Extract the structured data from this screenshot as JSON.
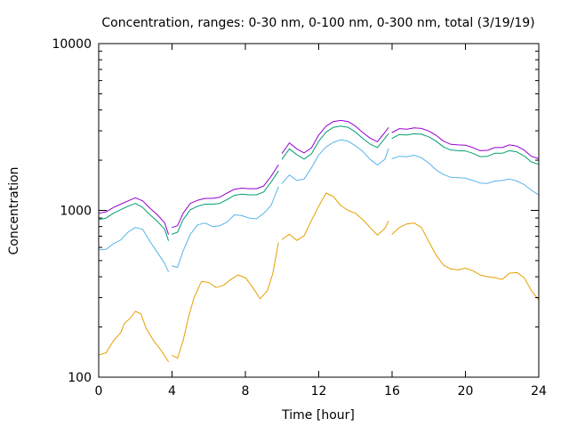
{
  "chart_data": {
    "type": "line",
    "title": "Concentration, ranges: 0-30 nm, 0-100 nm, 0-300 nm, total (3/19/19)",
    "xlabel": "Time [hour]",
    "ylabel": "Concentration",
    "xlim": [
      0,
      24
    ],
    "ylim": [
      100,
      10000
    ],
    "yscale": "log",
    "grid": false,
    "legend": "none",
    "x_ticks": [
      {
        "value": 0,
        "label": "0"
      },
      {
        "value": 4,
        "label": "4"
      },
      {
        "value": 8,
        "label": "8"
      },
      {
        "value": 12,
        "label": "12"
      },
      {
        "value": 16,
        "label": "16"
      },
      {
        "value": 20,
        "label": "20"
      },
      {
        "value": 24,
        "label": "24"
      }
    ],
    "y_ticks": [
      {
        "value": 100,
        "label": "100"
      },
      {
        "value": 1000,
        "label": "1000"
      },
      {
        "value": 10000,
        "label": "10000"
      }
    ],
    "series": [
      {
        "color": "#e69f00",
        "segments": [
          [
            [
              0,
              136
            ],
            [
              0.4,
              140
            ],
            [
              0.8,
              165
            ],
            [
              1.2,
              185
            ],
            [
              1.4,
              210
            ],
            [
              1.7,
              225
            ],
            [
              2.0,
              248
            ],
            [
              2.3,
              240
            ],
            [
              2.6,
              195
            ],
            [
              3.0,
              165
            ],
            [
              3.4,
              145
            ],
            [
              3.8,
              124
            ]
          ],
          [
            [
              4.0,
              135
            ],
            [
              4.3,
              130
            ],
            [
              4.6,
              165
            ],
            [
              4.9,
              230
            ],
            [
              5.2,
              300
            ],
            [
              5.6,
              375
            ],
            [
              6.0,
              370
            ],
            [
              6.4,
              345
            ],
            [
              6.8,
              355
            ],
            [
              7.2,
              385
            ],
            [
              7.6,
              410
            ],
            [
              8.0,
              395
            ],
            [
              8.4,
              345
            ],
            [
              8.8,
              295
            ],
            [
              9.2,
              330
            ],
            [
              9.5,
              420
            ],
            [
              9.8,
              640
            ]
          ],
          [
            [
              10.0,
              670
            ],
            [
              10.4,
              720
            ],
            [
              10.8,
              660
            ],
            [
              11.2,
              705
            ],
            [
              11.6,
              870
            ],
            [
              12.0,
              1060
            ],
            [
              12.4,
              1270
            ],
            [
              12.8,
              1210
            ],
            [
              13.2,
              1070
            ],
            [
              13.6,
              1000
            ],
            [
              14.0,
              960
            ],
            [
              14.4,
              880
            ],
            [
              14.8,
              790
            ],
            [
              15.2,
              710
            ],
            [
              15.6,
              780
            ],
            [
              15.8,
              860
            ]
          ],
          [
            [
              16.0,
              720
            ],
            [
              16.4,
              790
            ],
            [
              16.8,
              830
            ],
            [
              17.2,
              840
            ],
            [
              17.6,
              790
            ],
            [
              18.0,
              650
            ],
            [
              18.4,
              540
            ],
            [
              18.8,
              470
            ],
            [
              19.2,
              445
            ],
            [
              19.6,
              440
            ],
            [
              20.0,
              450
            ],
            [
              20.4,
              435
            ],
            [
              20.8,
              410
            ],
            [
              21.2,
              400
            ],
            [
              21.6,
              395
            ],
            [
              22.0,
              385
            ],
            [
              22.4,
              420
            ],
            [
              22.8,
              425
            ],
            [
              23.2,
              395
            ],
            [
              23.6,
              330
            ],
            [
              24.0,
              290
            ]
          ]
        ]
      },
      {
        "color": "#56b4e9",
        "segments": [
          [
            [
              0,
              580
            ],
            [
              0.4,
              585
            ],
            [
              0.8,
              630
            ],
            [
              1.2,
              665
            ],
            [
              1.6,
              740
            ],
            [
              2.0,
              790
            ],
            [
              2.4,
              770
            ],
            [
              2.8,
              650
            ],
            [
              3.2,
              560
            ],
            [
              3.6,
              480
            ],
            [
              3.8,
              430
            ]
          ],
          [
            [
              4.0,
              465
            ],
            [
              4.3,
              455
            ],
            [
              4.6,
              570
            ],
            [
              5.0,
              720
            ],
            [
              5.4,
              820
            ],
            [
              5.8,
              840
            ],
            [
              6.2,
              800
            ],
            [
              6.6,
              810
            ],
            [
              7.0,
              850
            ],
            [
              7.4,
              940
            ],
            [
              7.8,
              930
            ],
            [
              8.2,
              900
            ],
            [
              8.6,
              890
            ],
            [
              9.0,
              960
            ],
            [
              9.4,
              1070
            ],
            [
              9.8,
              1380
            ]
          ],
          [
            [
              10.0,
              1450
            ],
            [
              10.4,
              1630
            ],
            [
              10.8,
              1510
            ],
            [
              11.2,
              1540
            ],
            [
              11.6,
              1800
            ],
            [
              12.0,
              2150
            ],
            [
              12.4,
              2400
            ],
            [
              12.8,
              2560
            ],
            [
              13.2,
              2650
            ],
            [
              13.6,
              2600
            ],
            [
              14.0,
              2440
            ],
            [
              14.4,
              2260
            ],
            [
              14.8,
              2020
            ],
            [
              15.2,
              1870
            ],
            [
              15.6,
              2020
            ],
            [
              15.8,
              2340
            ]
          ],
          [
            [
              16.0,
              2040
            ],
            [
              16.4,
              2110
            ],
            [
              16.8,
              2100
            ],
            [
              17.2,
              2140
            ],
            [
              17.6,
              2070
            ],
            [
              18.0,
              1920
            ],
            [
              18.4,
              1750
            ],
            [
              18.8,
              1640
            ],
            [
              19.2,
              1580
            ],
            [
              19.6,
              1570
            ],
            [
              20.0,
              1560
            ],
            [
              20.4,
              1510
            ],
            [
              20.8,
              1460
            ],
            [
              21.2,
              1450
            ],
            [
              21.6,
              1500
            ],
            [
              22.0,
              1510
            ],
            [
              22.4,
              1540
            ],
            [
              22.8,
              1500
            ],
            [
              23.2,
              1430
            ],
            [
              23.6,
              1320
            ],
            [
              24.0,
              1240
            ]
          ]
        ]
      },
      {
        "color": "#009e73",
        "segments": [
          [
            [
              0,
              880
            ],
            [
              0.4,
              900
            ],
            [
              0.8,
              960
            ],
            [
              1.2,
              1010
            ],
            [
              1.6,
              1060
            ],
            [
              2.0,
              1100
            ],
            [
              2.4,
              1040
            ],
            [
              2.8,
              940
            ],
            [
              3.2,
              860
            ],
            [
              3.6,
              770
            ],
            [
              3.8,
              660
            ]
          ],
          [
            [
              4.0,
              720
            ],
            [
              4.3,
              740
            ],
            [
              4.6,
              880
            ],
            [
              5.0,
              1010
            ],
            [
              5.4,
              1060
            ],
            [
              5.8,
              1090
            ],
            [
              6.2,
              1090
            ],
            [
              6.6,
              1100
            ],
            [
              7.0,
              1160
            ],
            [
              7.4,
              1230
            ],
            [
              7.8,
              1250
            ],
            [
              8.2,
              1240
            ],
            [
              8.6,
              1240
            ],
            [
              9.0,
              1290
            ],
            [
              9.4,
              1480
            ],
            [
              9.8,
              1720
            ]
          ],
          [
            [
              10.0,
              2030
            ],
            [
              10.4,
              2340
            ],
            [
              10.8,
              2160
            ],
            [
              11.2,
              2030
            ],
            [
              11.6,
              2180
            ],
            [
              12.0,
              2600
            ],
            [
              12.4,
              2950
            ],
            [
              12.8,
              3150
            ],
            [
              13.2,
              3200
            ],
            [
              13.6,
              3150
            ],
            [
              14.0,
              2950
            ],
            [
              14.4,
              2700
            ],
            [
              14.8,
              2500
            ],
            [
              15.2,
              2380
            ],
            [
              15.6,
              2700
            ],
            [
              15.8,
              2880
            ]
          ],
          [
            [
              16.0,
              2700
            ],
            [
              16.4,
              2850
            ],
            [
              16.8,
              2830
            ],
            [
              17.2,
              2880
            ],
            [
              17.6,
              2860
            ],
            [
              18.0,
              2760
            ],
            [
              18.4,
              2600
            ],
            [
              18.8,
              2400
            ],
            [
              19.2,
              2300
            ],
            [
              19.6,
              2280
            ],
            [
              20.0,
              2270
            ],
            [
              20.4,
              2200
            ],
            [
              20.8,
              2100
            ],
            [
              21.2,
              2110
            ],
            [
              21.6,
              2200
            ],
            [
              22.0,
              2200
            ],
            [
              22.4,
              2280
            ],
            [
              22.8,
              2240
            ],
            [
              23.2,
              2120
            ],
            [
              23.6,
              1950
            ],
            [
              24.0,
              1890
            ]
          ]
        ]
      },
      {
        "color": "#9400d3",
        "segments": [
          [
            [
              0,
              960
            ],
            [
              0.4,
              980
            ],
            [
              0.8,
              1040
            ],
            [
              1.2,
              1090
            ],
            [
              1.6,
              1140
            ],
            [
              2.0,
              1190
            ],
            [
              2.4,
              1140
            ],
            [
              2.8,
              1030
            ],
            [
              3.2,
              940
            ],
            [
              3.6,
              840
            ],
            [
              3.8,
              720
            ]
          ],
          [
            [
              4.0,
              790
            ],
            [
              4.3,
              810
            ],
            [
              4.6,
              960
            ],
            [
              5.0,
              1100
            ],
            [
              5.4,
              1150
            ],
            [
              5.8,
              1180
            ],
            [
              6.2,
              1180
            ],
            [
              6.6,
              1200
            ],
            [
              7.0,
              1270
            ],
            [
              7.4,
              1340
            ],
            [
              7.8,
              1360
            ],
            [
              8.2,
              1350
            ],
            [
              8.6,
              1350
            ],
            [
              9.0,
              1400
            ],
            [
              9.4,
              1600
            ],
            [
              9.8,
              1870
            ]
          ],
          [
            [
              10.0,
              2200
            ],
            [
              10.4,
              2540
            ],
            [
              10.8,
              2340
            ],
            [
              11.2,
              2210
            ],
            [
              11.6,
              2370
            ],
            [
              12.0,
              2830
            ],
            [
              12.4,
              3200
            ],
            [
              12.8,
              3410
            ],
            [
              13.2,
              3460
            ],
            [
              13.6,
              3410
            ],
            [
              14.0,
              3200
            ],
            [
              14.4,
              2930
            ],
            [
              14.8,
              2710
            ],
            [
              15.2,
              2580
            ],
            [
              15.6,
              2930
            ],
            [
              15.8,
              3130
            ]
          ],
          [
            [
              16.0,
              2930
            ],
            [
              16.4,
              3090
            ],
            [
              16.8,
              3070
            ],
            [
              17.2,
              3120
            ],
            [
              17.6,
              3100
            ],
            [
              18.0,
              2990
            ],
            [
              18.4,
              2820
            ],
            [
              18.8,
              2600
            ],
            [
              19.2,
              2490
            ],
            [
              19.6,
              2470
            ],
            [
              20.0,
              2460
            ],
            [
              20.4,
              2380
            ],
            [
              20.8,
              2280
            ],
            [
              21.2,
              2290
            ],
            [
              21.6,
              2380
            ],
            [
              22.0,
              2380
            ],
            [
              22.4,
              2470
            ],
            [
              22.8,
              2430
            ],
            [
              23.2,
              2300
            ],
            [
              23.6,
              2110
            ],
            [
              24.0,
              2040
            ]
          ]
        ]
      }
    ]
  }
}
